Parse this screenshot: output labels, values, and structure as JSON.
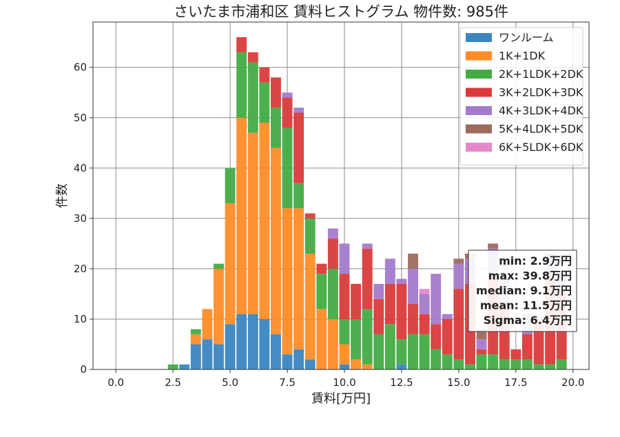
{
  "chart_data": {
    "type": "bar",
    "stacked": true,
    "title": "さいたま市浦和区 賃料ヒストグラム  物件数: 985件",
    "xlabel": "賃料[万円]",
    "ylabel": "件数",
    "xlim": [
      -1.0,
      20.7
    ],
    "ylim": [
      0,
      69
    ],
    "xticks": [
      "0.0",
      "2.5",
      "5.0",
      "7.5",
      "10.0",
      "12.5",
      "15.0",
      "17.5",
      "20.0"
    ],
    "yticks": [
      "0",
      "10",
      "20",
      "30",
      "40",
      "50",
      "60"
    ],
    "grid": true,
    "legend_position": "top-right",
    "bin_width": 0.5,
    "x": [
      2.5,
      3.0,
      3.5,
      4.0,
      4.5,
      5.0,
      5.5,
      6.0,
      6.5,
      7.0,
      7.5,
      8.0,
      8.5,
      9.0,
      9.5,
      10.0,
      10.5,
      11.0,
      11.5,
      12.0,
      12.5,
      13.0,
      13.5,
      14.0,
      14.5,
      15.0,
      15.5,
      16.0,
      16.5,
      17.0,
      17.5,
      18.0,
      18.5,
      19.0,
      19.5
    ],
    "series": [
      {
        "name": "ワンルーム",
        "color": "#3a86c0",
        "values": [
          0,
          1,
          5,
          6,
          5,
          9,
          11,
          11,
          10,
          7,
          3,
          4,
          2,
          0,
          0,
          1,
          0,
          0,
          0,
          0,
          1,
          0,
          0,
          0,
          0,
          0,
          0,
          0,
          0,
          0,
          0,
          0,
          0,
          0,
          0
        ]
      },
      {
        "name": "1K+1DK",
        "color": "#ff8c28",
        "values": [
          0,
          0,
          2,
          6,
          15,
          24,
          39,
          36,
          39,
          37,
          29,
          28,
          21,
          12,
          10,
          4,
          2,
          1,
          0,
          0,
          0,
          0,
          0,
          0,
          0,
          0,
          0,
          0,
          0,
          0,
          0,
          0,
          0,
          0,
          0
        ]
      },
      {
        "name": "2K+1LDK+2DK",
        "color": "#44ab44",
        "values": [
          1,
          0,
          1,
          0,
          1,
          7,
          13,
          14,
          8,
          8,
          16,
          5,
          7,
          7,
          10,
          5,
          8,
          11,
          7,
          9,
          5,
          7,
          7,
          4,
          3,
          2,
          1,
          3,
          3,
          2,
          2,
          2,
          1,
          1,
          2
        ]
      },
      {
        "name": "3K+2LDK+3DK",
        "color": "#d93b3b",
        "values": [
          0,
          0,
          0,
          0,
          0,
          0,
          3,
          2,
          3,
          6,
          6,
          14,
          1,
          2,
          6,
          9,
          7,
          12,
          7,
          8,
          11,
          6,
          4,
          5,
          7,
          14,
          16,
          1,
          16,
          11,
          2,
          5,
          9,
          17,
          14
        ]
      },
      {
        "name": "4K+3LDK+4DK",
        "color": "#a37acc",
        "values": [
          0,
          0,
          0,
          0,
          0,
          0,
          0,
          0,
          0,
          0,
          1,
          1,
          0,
          0,
          2,
          6,
          0,
          1,
          3,
          5,
          1,
          7,
          4,
          10,
          1,
          5,
          5,
          2,
          5,
          5,
          0,
          4,
          0,
          4,
          2
        ]
      },
      {
        "name": "5K+4LDK+5DK",
        "color": "#9b6b5b",
        "values": [
          0,
          0,
          0,
          0,
          0,
          0,
          0,
          0,
          0,
          0,
          0,
          0,
          0,
          0,
          0,
          0,
          0,
          0,
          0,
          0,
          0,
          3,
          0,
          0,
          0,
          1,
          1,
          2,
          1,
          0,
          0,
          0,
          0,
          1,
          1
        ]
      },
      {
        "name": "6K+5LDK+6DK",
        "color": "#e888cc",
        "values": [
          0,
          0,
          0,
          0,
          0,
          0,
          0,
          0,
          0,
          0,
          0,
          0,
          0,
          0,
          0,
          0,
          0,
          0,
          0,
          0,
          0,
          0,
          1,
          0,
          0,
          0,
          0,
          0,
          0,
          0,
          0,
          0,
          0,
          0,
          0
        ]
      }
    ],
    "stats": [
      "min: 2.9万円",
      "max: 39.8万円",
      "median: 9.1万円",
      "mean: 11.5万円",
      "Sigma: 6.4万円"
    ]
  }
}
